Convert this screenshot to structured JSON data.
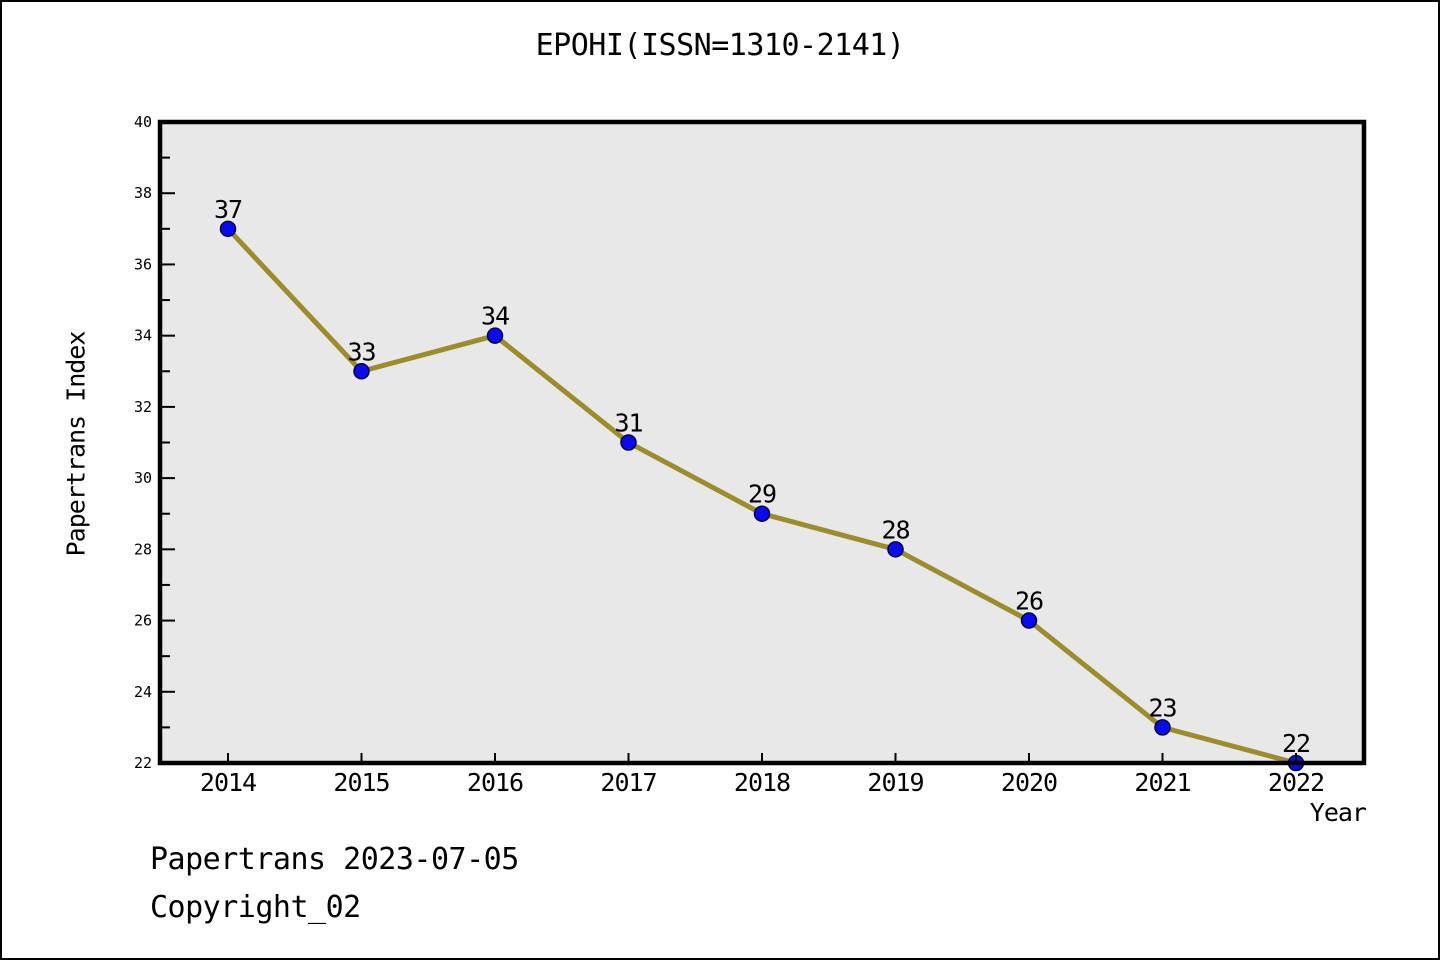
{
  "figure": {
    "footer_line1": "Papertrans 2023-07-05",
    "footer_line2": "Copyright_02"
  },
  "chart_data": {
    "type": "line",
    "title": "EPOHI(ISSN=1310-2141)",
    "x": [
      "2014",
      "2015",
      "2016",
      "2017",
      "2018",
      "2019",
      "2020",
      "2021",
      "2022"
    ],
    "series": [
      {
        "name": "Papertrans Index",
        "values": [
          37,
          33,
          34,
          31,
          29,
          28,
          26,
          23,
          22
        ]
      }
    ],
    "point_labels": [
      "37",
      "33",
      "34",
      "31",
      "29",
      "28",
      "26",
      "23",
      "22"
    ],
    "xlabel": "Year",
    "ylabel": "Papertrans Index",
    "ylim": [
      22,
      40
    ],
    "ytick_step": 2,
    "yminor_step": 1,
    "grid": false,
    "legend": "none",
    "colors": {
      "line": "#9d8c2c",
      "marker_fill": "#0a0af0",
      "marker_edge": "#000040",
      "plot_bg": "#e8e8e8",
      "axis": "#000000",
      "text": "#000000",
      "figure_bg": "#ffffff"
    }
  }
}
